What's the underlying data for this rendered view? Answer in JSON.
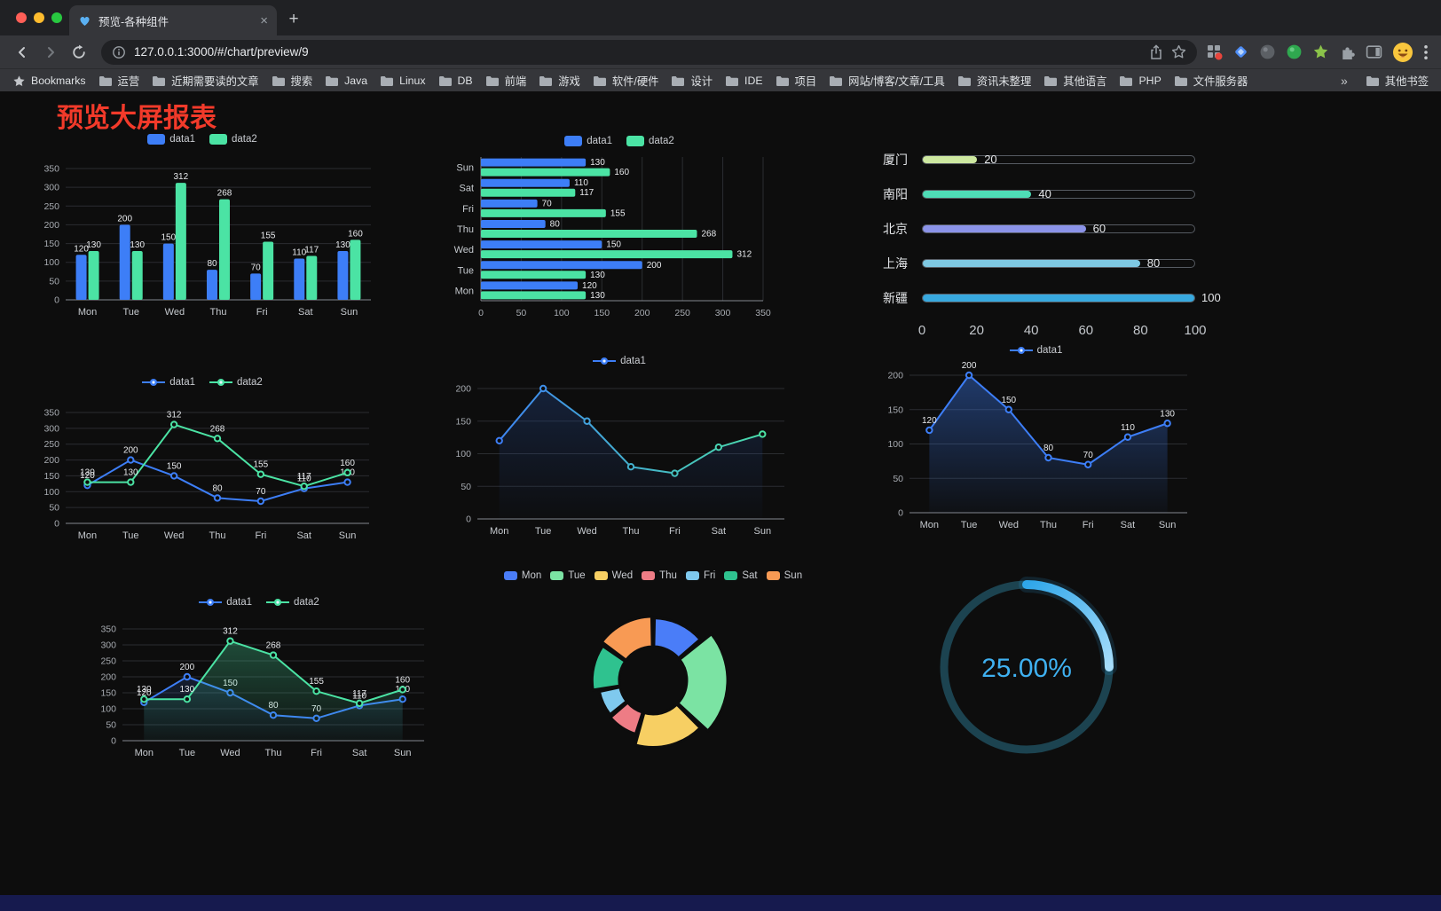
{
  "browser": {
    "tab_title": "预览-各种组件",
    "url": "127.0.0.1:3000/#/chart/preview/9",
    "bookmarks_label": "Bookmarks",
    "bookmarks": [
      "运营",
      "近期需要读的文章",
      "搜索",
      "Java",
      "Linux",
      "DB",
      "前端",
      "游戏",
      "软件/硬件",
      "设计",
      "IDE",
      "项目",
      "网站/博客/文章/工具",
      "资讯未整理",
      "其他语言",
      "PHP",
      "文件服务器"
    ],
    "bookmarks_overflow": "»",
    "other_bookmarks": "其他书签"
  },
  "icons": {
    "tab_close": "×",
    "new_tab": "+"
  },
  "page": {
    "title": "预览大屏报表"
  },
  "colors": {
    "data1": "#3D7EF7",
    "data2": "#4BE3A4",
    "title_red": "#F23A2A",
    "gauge_blue": "#2FA6E9"
  },
  "chart_data": [
    {
      "id": "grouped-bar",
      "type": "bar",
      "categories": [
        "Mon",
        "Tue",
        "Wed",
        "Thu",
        "Fri",
        "Sat",
        "Sun"
      ],
      "ylim": [
        0,
        350
      ],
      "yticks": [
        0,
        50,
        100,
        150,
        200,
        250,
        300,
        350
      ],
      "series": [
        {
          "name": "data1",
          "color": "#3D7EF7",
          "values": [
            120,
            200,
            150,
            80,
            70,
            110,
            130
          ]
        },
        {
          "name": "data2",
          "color": "#4BE3A4",
          "values": [
            130,
            130,
            312,
            268,
            155,
            117,
            160
          ]
        }
      ]
    },
    {
      "id": "grouped-hbar",
      "type": "hbar",
      "categories": [
        "Mon",
        "Tue",
        "Wed",
        "Thu",
        "Fri",
        "Sat",
        "Sun"
      ],
      "xlim": [
        0,
        350
      ],
      "xticks": [
        0,
        50,
        100,
        150,
        200,
        250,
        300,
        350
      ],
      "series": [
        {
          "name": "data1",
          "color": "#3D7EF7",
          "values": [
            120,
            200,
            150,
            80,
            70,
            110,
            130
          ]
        },
        {
          "name": "data2",
          "color": "#4BE3A4",
          "values": [
            130,
            130,
            312,
            268,
            155,
            117,
            160
          ]
        }
      ]
    },
    {
      "id": "city-progress",
      "type": "progress",
      "max": 100,
      "xticks": [
        0,
        20,
        40,
        60,
        80,
        100
      ],
      "items": [
        {
          "label": "厦门",
          "value": 20,
          "color": "#CDE8A0"
        },
        {
          "label": "南阳",
          "value": 40,
          "color": "#4EDCB6"
        },
        {
          "label": "北京",
          "value": 60,
          "color": "#8B93E8"
        },
        {
          "label": "上海",
          "value": 80,
          "color": "#7EC8E2"
        },
        {
          "label": "新疆",
          "value": 100,
          "color": "#38A9DF"
        }
      ]
    },
    {
      "id": "dual-line",
      "type": "line",
      "categories": [
        "Mon",
        "Tue",
        "Wed",
        "Thu",
        "Fri",
        "Sat",
        "Sun"
      ],
      "ylim": [
        0,
        350
      ],
      "yticks": [
        0,
        50,
        100,
        150,
        200,
        250,
        300,
        350
      ],
      "series": [
        {
          "name": "data1",
          "color": "#3D7EF7",
          "values": [
            120,
            200,
            150,
            80,
            70,
            110,
            130
          ],
          "labels": true
        },
        {
          "name": "data2",
          "color": "#4BE3A4",
          "values": [
            130,
            130,
            312,
            268,
            155,
            117,
            160
          ],
          "labels": true
        }
      ]
    },
    {
      "id": "gradient-line",
      "type": "line",
      "categories": [
        "Mon",
        "Tue",
        "Wed",
        "Thu",
        "Fri",
        "Sat",
        "Sun"
      ],
      "ylim": [
        0,
        200
      ],
      "yticks": [
        0,
        50,
        100,
        150,
        200
      ],
      "series": [
        {
          "name": "data1",
          "gradient": [
            "#3D7EF7",
            "#4BE3A4"
          ],
          "values": [
            120,
            200,
            150,
            80,
            70,
            110,
            130
          ],
          "labels": false,
          "area": [
            "rgba(40,80,160,0.30)",
            "rgba(40,80,160,0.02)"
          ]
        }
      ]
    },
    {
      "id": "area-line",
      "type": "line",
      "categories": [
        "Mon",
        "Tue",
        "Wed",
        "Thu",
        "Fri",
        "Sat",
        "Sun"
      ],
      "ylim": [
        0,
        200
      ],
      "yticks": [
        0,
        50,
        100,
        150,
        200
      ],
      "series": [
        {
          "name": "data1",
          "color": "#3D7EF7",
          "values": [
            120,
            200,
            150,
            80,
            70,
            110,
            130
          ],
          "labels": true,
          "area": [
            "rgba(61,126,247,0.40)",
            "rgba(61,126,247,0.03)"
          ]
        }
      ]
    },
    {
      "id": "dual-area-line",
      "type": "line",
      "categories": [
        "Mon",
        "Tue",
        "Wed",
        "Thu",
        "Fri",
        "Sat",
        "Sun"
      ],
      "ylim": [
        0,
        350
      ],
      "yticks": [
        0,
        50,
        100,
        150,
        200,
        250,
        300,
        350
      ],
      "series": [
        {
          "name": "data1",
          "color": "#3D7EF7",
          "values": [
            120,
            200,
            150,
            80,
            70,
            110,
            130
          ],
          "labels": true,
          "area": [
            "rgba(61,126,247,0.25)",
            "rgba(61,126,247,0.02)"
          ]
        },
        {
          "name": "data2",
          "color": "#4BE3A4",
          "values": [
            130,
            130,
            312,
            268,
            155,
            117,
            160
          ],
          "labels": true,
          "area": [
            "rgba(75,227,164,0.32)",
            "rgba(75,227,164,0.03)"
          ]
        }
      ]
    },
    {
      "id": "rose-donut",
      "type": "rose",
      "categories": [
        "Mon",
        "Tue",
        "Wed",
        "Thu",
        "Fri",
        "Sat",
        "Sun"
      ],
      "values": [
        120,
        200,
        150,
        80,
        70,
        110,
        130
      ],
      "colors": [
        "#4A7DF8",
        "#7BE3A3",
        "#F7CF63",
        "#EE7C85",
        "#7FC9EE",
        "#2FC28F",
        "#F89A54"
      ]
    },
    {
      "id": "gauge",
      "type": "gauge",
      "value": 25,
      "label": "25.00%",
      "color": "#2FA6E9",
      "track_color": "#1C4350",
      "text_color": "#3FB1F1"
    }
  ]
}
